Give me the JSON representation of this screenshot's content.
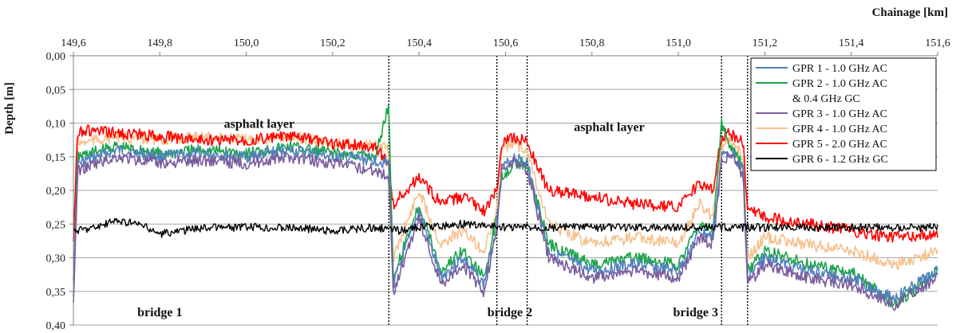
{
  "chart_data": {
    "type": "line",
    "xlabel": "Chainage [km]",
    "ylabel": "Depth [m]",
    "xlim": [
      149.6,
      151.6
    ],
    "ylim": [
      0.0,
      0.4
    ],
    "y_inverted": true,
    "x_axis_position": "top",
    "grid": "horizontal",
    "xticks": [
      "149,6",
      "149,8",
      "150,0",
      "150,2",
      "150,4",
      "150,6",
      "150,8",
      "151,0",
      "151,2",
      "151,4",
      "151,6"
    ],
    "xtick_values": [
      149.6,
      149.8,
      150.0,
      150.2,
      150.4,
      150.6,
      150.8,
      151.0,
      151.2,
      151.4,
      151.6
    ],
    "yticks": [
      "0,00",
      "0,05",
      "0,10",
      "0,15",
      "0,20",
      "0,25",
      "0,30",
      "0,35",
      "0,40"
    ],
    "ytick_values": [
      0.0,
      0.05,
      0.1,
      0.15,
      0.2,
      0.25,
      0.3,
      0.35,
      0.4
    ],
    "legend_position": "top-right",
    "series": [
      {
        "name": "GPR 1 - 1.0 GHz AC",
        "color": "#4f81bd",
        "x": [
          149.6,
          149.61,
          149.7,
          149.8,
          149.9,
          150.0,
          150.1,
          150.2,
          150.3,
          150.33,
          150.34,
          150.4,
          150.45,
          150.5,
          150.55,
          150.58,
          150.59,
          150.62,
          150.65,
          150.7,
          150.8,
          150.9,
          151.0,
          151.05,
          151.08,
          151.1,
          151.12,
          151.15,
          151.16,
          151.2,
          151.3,
          151.4,
          151.5,
          151.6
        ],
        "y": [
          0.35,
          0.16,
          0.14,
          0.15,
          0.145,
          0.15,
          0.14,
          0.15,
          0.155,
          0.16,
          0.34,
          0.23,
          0.33,
          0.3,
          0.34,
          0.25,
          0.17,
          0.15,
          0.16,
          0.29,
          0.32,
          0.31,
          0.32,
          0.26,
          0.27,
          0.15,
          0.14,
          0.17,
          0.33,
          0.3,
          0.32,
          0.33,
          0.36,
          0.32
        ]
      },
      {
        "name": "GPR 2 - 1.0 GHz AC & 0.4 GHz GC",
        "color": "#1aa34a",
        "x": [
          149.6,
          149.61,
          149.7,
          149.8,
          149.9,
          150.0,
          150.1,
          150.2,
          150.3,
          150.33,
          150.34,
          150.4,
          150.45,
          150.5,
          150.55,
          150.58,
          150.59,
          150.62,
          150.65,
          150.7,
          150.8,
          150.9,
          151.0,
          151.05,
          151.08,
          151.1,
          151.12,
          151.15,
          151.16,
          151.2,
          151.3,
          151.4,
          151.5,
          151.6
        ],
        "y": [
          0.34,
          0.15,
          0.135,
          0.145,
          0.14,
          0.145,
          0.135,
          0.145,
          0.15,
          0.07,
          0.33,
          0.22,
          0.32,
          0.29,
          0.33,
          0.24,
          0.18,
          0.16,
          0.16,
          0.28,
          0.31,
          0.3,
          0.31,
          0.25,
          0.26,
          0.1,
          0.135,
          0.165,
          0.32,
          0.29,
          0.31,
          0.32,
          0.37,
          0.32
        ]
      },
      {
        "name": "GPR 3 - 1.0 GHz AC",
        "color": "#7a5c9e",
        "x": [
          149.6,
          149.61,
          149.7,
          149.8,
          149.9,
          150.0,
          150.1,
          150.2,
          150.3,
          150.33,
          150.34,
          150.4,
          150.45,
          150.5,
          150.55,
          150.58,
          150.59,
          150.62,
          150.65,
          150.7,
          150.8,
          150.9,
          151.0,
          151.05,
          151.08,
          151.1,
          151.12,
          151.15,
          151.16,
          151.2,
          151.3,
          151.4,
          151.5,
          151.6
        ],
        "y": [
          0.37,
          0.17,
          0.15,
          0.16,
          0.155,
          0.16,
          0.15,
          0.16,
          0.17,
          0.18,
          0.35,
          0.24,
          0.34,
          0.31,
          0.35,
          0.26,
          0.17,
          0.155,
          0.17,
          0.3,
          0.33,
          0.32,
          0.33,
          0.27,
          0.28,
          0.16,
          0.145,
          0.18,
          0.34,
          0.31,
          0.33,
          0.34,
          0.37,
          0.33
        ]
      },
      {
        "name": "GPR 4 - 1.0 GHz AC",
        "color": "#f5c18d",
        "x": [
          149.6,
          149.61,
          149.7,
          149.8,
          149.9,
          150.0,
          150.1,
          150.2,
          150.3,
          150.33,
          150.34,
          150.4,
          150.45,
          150.5,
          150.55,
          150.58,
          150.59,
          150.62,
          150.65,
          150.7,
          150.8,
          150.9,
          151.0,
          151.05,
          151.08,
          151.1,
          151.12,
          151.15,
          151.16,
          151.2,
          151.3,
          151.4,
          151.5,
          151.6
        ],
        "y": [
          0.3,
          0.13,
          0.12,
          0.125,
          0.12,
          0.125,
          0.12,
          0.13,
          0.135,
          0.14,
          0.3,
          0.2,
          0.28,
          0.26,
          0.29,
          0.23,
          0.14,
          0.13,
          0.14,
          0.25,
          0.28,
          0.27,
          0.28,
          0.22,
          0.24,
          0.13,
          0.125,
          0.15,
          0.3,
          0.27,
          0.28,
          0.29,
          0.31,
          0.29
        ]
      },
      {
        "name": "GPR 5 - 2.0 GHz AC",
        "color": "#ff0000",
        "x": [
          149.6,
          149.61,
          149.7,
          149.8,
          149.9,
          150.0,
          150.1,
          150.2,
          150.3,
          150.33,
          150.34,
          150.4,
          150.45,
          150.5,
          150.55,
          150.58,
          150.59,
          150.62,
          150.65,
          150.7,
          150.8,
          150.9,
          151.0,
          151.05,
          151.08,
          151.1,
          151.12,
          151.15,
          151.16,
          151.2,
          151.3,
          151.4,
          151.5,
          151.6
        ],
        "y": [
          0.27,
          0.11,
          0.115,
          0.12,
          0.125,
          0.125,
          0.12,
          0.13,
          0.135,
          0.16,
          0.22,
          0.18,
          0.22,
          0.21,
          0.23,
          0.2,
          0.13,
          0.12,
          0.13,
          0.2,
          0.21,
          0.22,
          0.225,
          0.19,
          0.2,
          0.12,
          0.115,
          0.13,
          0.23,
          0.24,
          0.25,
          0.26,
          0.27,
          0.265
        ]
      },
      {
        "name": "GPR 6 - 1.2 GHz GC",
        "color": "#000000",
        "x": [
          149.6,
          149.65,
          149.7,
          149.75,
          149.8,
          149.85,
          149.9,
          150.0,
          150.1,
          150.2,
          150.3,
          150.35,
          150.4,
          150.5,
          150.6,
          150.7,
          150.8,
          150.9,
          151.0,
          151.1,
          151.2,
          151.3,
          151.4,
          151.5,
          151.6
        ],
        "y": [
          0.26,
          0.255,
          0.245,
          0.25,
          0.265,
          0.26,
          0.255,
          0.255,
          0.255,
          0.26,
          0.255,
          0.26,
          0.255,
          0.25,
          0.255,
          0.255,
          0.255,
          0.255,
          0.255,
          0.255,
          0.255,
          0.255,
          0.255,
          0.255,
          0.255
        ]
      }
    ],
    "vlines": [
      150.33,
      150.58,
      150.65,
      151.1,
      151.16
    ],
    "annotations": [
      {
        "text": "asphalt layer",
        "x": 150.03,
        "y": 0.1
      },
      {
        "text": "asphalt layer",
        "x": 150.84,
        "y": 0.105
      },
      {
        "text": "bridge 1",
        "x": 149.8,
        "y": 0.38
      },
      {
        "text": "bridge 2",
        "x": 150.61,
        "y": 0.38
      },
      {
        "text": "bridge 3",
        "x": 151.04,
        "y": 0.38
      }
    ]
  }
}
